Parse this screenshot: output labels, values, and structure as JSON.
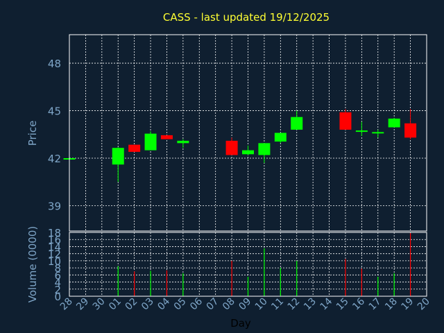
{
  "chart_data": {
    "title": "CASS - last updated 19/12/2025",
    "colors": {
      "background": "#0f1f30",
      "up": "#00ff00",
      "down": "#ff0000",
      "title": "#ffff33",
      "axis_text": "#7fa6c8",
      "grid": "#ffffff"
    },
    "x_tick_labels": [
      "28",
      "29",
      "30",
      "01",
      "02",
      "03",
      "04",
      "05",
      "06",
      "07",
      "08",
      "09",
      "10",
      "11",
      "12",
      "13",
      "14",
      "15",
      "16",
      "17",
      "18",
      "19",
      "20"
    ],
    "xlabel": "Day",
    "price_panel": {
      "type": "candlestick",
      "ylabel": "Price",
      "ylim": [
        37.4,
        49.8
      ],
      "yticks": [
        39,
        42,
        45,
        48
      ],
      "grid": true,
      "candles": [
        {
          "day": "28",
          "open": 41.92,
          "high": 42.0,
          "low": 41.85,
          "close": 42.0
        },
        {
          "day": "01",
          "open": 41.6,
          "high": 42.7,
          "low": 40.5,
          "close": 42.65
        },
        {
          "day": "02",
          "open": 42.85,
          "high": 42.85,
          "low": 42.4,
          "close": 42.4
        },
        {
          "day": "03",
          "open": 42.5,
          "high": 43.7,
          "low": 42.5,
          "close": 43.55
        },
        {
          "day": "04",
          "open": 43.45,
          "high": 43.45,
          "low": 43.2,
          "close": 43.2
        },
        {
          "day": "05",
          "open": 42.95,
          "high": 43.2,
          "low": 42.65,
          "close": 43.1
        },
        {
          "day": "08",
          "open": 43.1,
          "high": 43.3,
          "low": 42.2,
          "close": 42.2
        },
        {
          "day": "09",
          "open": 42.25,
          "high": 42.8,
          "low": 42.2,
          "close": 42.5
        },
        {
          "day": "10",
          "open": 42.2,
          "high": 42.95,
          "low": 41.7,
          "close": 42.95
        },
        {
          "day": "11",
          "open": 43.05,
          "high": 43.6,
          "low": 42.95,
          "close": 43.6
        },
        {
          "day": "12",
          "open": 43.8,
          "high": 45.0,
          "low": 43.8,
          "close": 44.6
        },
        {
          "day": "15",
          "open": 44.9,
          "high": 45.1,
          "low": 43.8,
          "close": 43.8
        },
        {
          "day": "16",
          "open": 43.75,
          "high": 44.3,
          "low": 43.4,
          "close": 43.75
        },
        {
          "day": "17",
          "open": 43.6,
          "high": 43.8,
          "low": 43.3,
          "close": 43.65
        },
        {
          "day": "18",
          "open": 43.95,
          "high": 44.55,
          "low": 43.95,
          "close": 44.5
        },
        {
          "day": "19",
          "open": 44.2,
          "high": 45.1,
          "low": 43.2,
          "close": 43.3
        }
      ]
    },
    "volume_panel": {
      "type": "bar",
      "ylabel": "Volume (0000)",
      "ylim": [
        0,
        18
      ],
      "yticks": [
        0,
        2,
        4,
        6,
        8,
        10,
        12,
        14,
        16,
        18
      ],
      "grid": true,
      "bars": [
        {
          "day": "01",
          "value": 8.5,
          "direction": "up"
        },
        {
          "day": "02",
          "value": 7.0,
          "direction": "down"
        },
        {
          "day": "03",
          "value": 7.2,
          "direction": "up"
        },
        {
          "day": "04",
          "value": 7.3,
          "direction": "down"
        },
        {
          "day": "05",
          "value": 6.5,
          "direction": "up"
        },
        {
          "day": "08",
          "value": 10.0,
          "direction": "down"
        },
        {
          "day": "09",
          "value": 5.5,
          "direction": "up"
        },
        {
          "day": "10",
          "value": 13.5,
          "direction": "up"
        },
        {
          "day": "11",
          "value": 8.0,
          "direction": "up"
        },
        {
          "day": "12",
          "value": 10.0,
          "direction": "up"
        },
        {
          "day": "15",
          "value": 10.5,
          "direction": "down"
        },
        {
          "day": "16",
          "value": 7.8,
          "direction": "down"
        },
        {
          "day": "17",
          "value": 5.5,
          "direction": "up"
        },
        {
          "day": "18",
          "value": 6.5,
          "direction": "up"
        },
        {
          "day": "19",
          "value": 17.8,
          "direction": "down"
        }
      ]
    }
  }
}
